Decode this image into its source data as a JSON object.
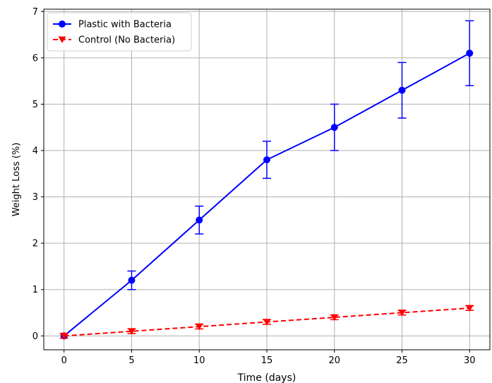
{
  "chart_data": {
    "type": "line",
    "xlabel": "Time (days)",
    "ylabel": "Weight Loss (%)",
    "xlim": [
      -1.5,
      31.5
    ],
    "ylim": [
      -0.3,
      7.05
    ],
    "xticks": [
      0,
      5,
      10,
      15,
      20,
      25,
      30
    ],
    "yticks": [
      0,
      1,
      2,
      3,
      4,
      5,
      6,
      7
    ],
    "grid": true,
    "legend_position": "top-left",
    "series": [
      {
        "name": "Plastic with Bacteria",
        "color": "#0000ff",
        "line_style": "solid",
        "marker": "circle",
        "x": [
          0,
          5,
          10,
          15,
          20,
          25,
          30
        ],
        "y": [
          0,
          1.2,
          2.5,
          3.8,
          4.5,
          5.3,
          6.1
        ],
        "error": [
          0,
          0.2,
          0.3,
          0.4,
          0.5,
          0.6,
          0.7
        ]
      },
      {
        "name": "Control (No Bacteria)",
        "color": "#ff0000",
        "line_style": "dashed",
        "marker": "triangle-down",
        "x": [
          0,
          5,
          10,
          15,
          20,
          25,
          30
        ],
        "y": [
          0,
          0.1,
          0.2,
          0.3,
          0.4,
          0.5,
          0.6
        ],
        "error": [
          0.05,
          0.05,
          0.05,
          0.05,
          0.05,
          0.05,
          0.05
        ]
      }
    ]
  }
}
